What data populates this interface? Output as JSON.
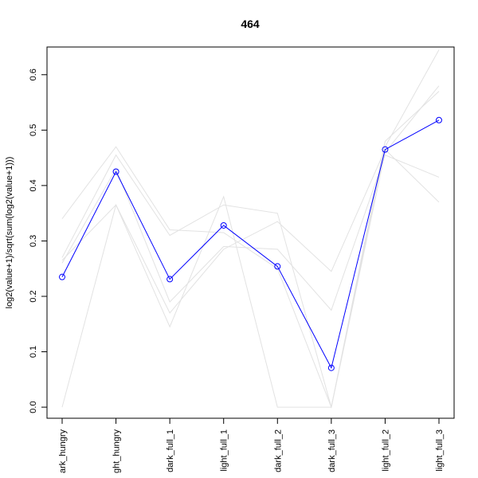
{
  "chart_data": {
    "type": "line",
    "title": "464",
    "xlabel": "",
    "ylabel": "log2(value+1)/sqrt(sum(log2(value+1)))",
    "categories": [
      "dark_hungry",
      "light_hungry",
      "dark_full_1",
      "light_full_1",
      "dark_full_2",
      "dark_full_3",
      "light_full_2",
      "light_full_3"
    ],
    "category_labels_visible": [
      "ark_hungry",
      "ght_hungry",
      "dark_full_1",
      "light_full_1",
      "dark_full_2",
      "dark_full_3",
      "light_full_2",
      "light_full_3"
    ],
    "ylim": [
      -0.02,
      0.65
    ],
    "yticks": [
      0.0,
      0.1,
      0.2,
      0.3,
      0.4,
      0.5,
      0.6
    ],
    "highlight": {
      "name": "464",
      "color": "#0000ff",
      "values": [
        0.235,
        0.425,
        0.231,
        0.328,
        0.254,
        0.071,
        0.465,
        0.518
      ]
    },
    "background_series": [
      {
        "values": [
          0.34,
          0.47,
          0.32,
          0.315,
          0.25,
          0.0,
          0.47,
          0.645
        ]
      },
      {
        "values": [
          0.27,
          0.455,
          0.31,
          0.365,
          0.35,
          0.0,
          0.48,
          0.57
        ]
      },
      {
        "values": [
          0.0,
          0.365,
          0.145,
          0.38,
          0.0,
          0.0,
          0.46,
          0.58
        ]
      },
      {
        "values": [
          0.26,
          0.43,
          0.19,
          0.29,
          0.285,
          0.175,
          0.455,
          0.415
        ]
      },
      {
        "values": [
          0.265,
          0.365,
          0.17,
          0.285,
          0.335,
          0.245,
          0.465,
          0.37
        ]
      }
    ],
    "background_color": "#e2e2e2",
    "grid": false,
    "legend": "none"
  }
}
